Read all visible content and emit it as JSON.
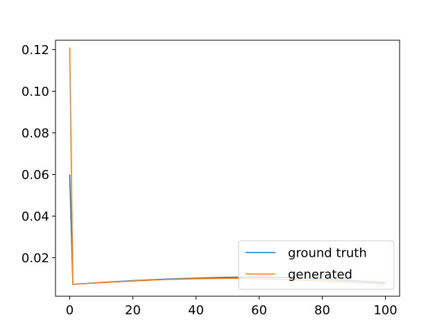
{
  "chart_data": {
    "type": "line",
    "title": "",
    "xlabel": "",
    "ylabel": "",
    "xlim": [
      -4.5,
      104.5
    ],
    "ylim": [
      0.0015,
      0.1245
    ],
    "xticks": [
      0,
      20,
      40,
      60,
      80,
      100
    ],
    "yticks": [
      0.02,
      0.04,
      0.06,
      0.08,
      0.1,
      0.12
    ],
    "ytick_labels": [
      "0.02",
      "0.04",
      "0.06",
      "0.08",
      "0.10",
      "0.12"
    ],
    "grid": false,
    "legend_position": "lower-right",
    "series": [
      {
        "name": "ground truth",
        "color": "#1f77b4",
        "x": [
          0,
          1,
          10,
          20,
          30,
          40,
          50,
          55,
          60,
          70,
          80,
          90,
          100
        ],
        "y": [
          0.06,
          0.0072,
          0.0081,
          0.009,
          0.0097,
          0.0102,
          0.0106,
          0.0107,
          0.0107,
          0.0104,
          0.0097,
          0.0089,
          0.0081
        ]
      },
      {
        "name": "generated",
        "color": "#ff7f0e",
        "x": [
          0,
          1,
          10,
          20,
          30,
          40,
          50,
          55,
          60,
          70,
          80,
          90,
          100
        ],
        "y": [
          0.121,
          0.0072,
          0.008,
          0.0088,
          0.0095,
          0.0099,
          0.0101,
          0.0101,
          0.01,
          0.0095,
          0.0088,
          0.0082,
          0.0076
        ]
      }
    ]
  }
}
